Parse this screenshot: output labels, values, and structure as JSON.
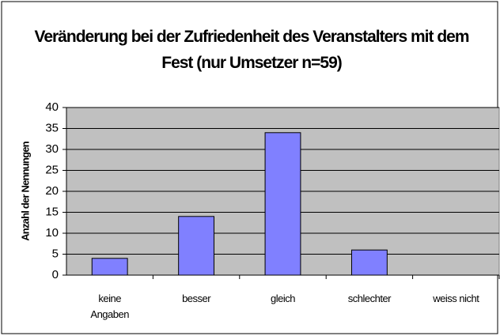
{
  "chart_data": {
    "type": "bar",
    "title": "Veränderung bei der Zufriedenheit des Veranstalters mit dem Fest (nur Umsetzer n=59)",
    "y_label": "Anzahl der Nennungen",
    "categories": [
      "keine Angaben",
      "besser",
      "gleich",
      "schlechter",
      "weiss nicht"
    ],
    "values": [
      4,
      14,
      34,
      6,
      0
    ],
    "color": "#8080ff",
    "ylim": [
      0,
      40
    ],
    "yticks": [
      0,
      5,
      10,
      15,
      20,
      25,
      30,
      35,
      40
    ],
    "grid": true
  }
}
